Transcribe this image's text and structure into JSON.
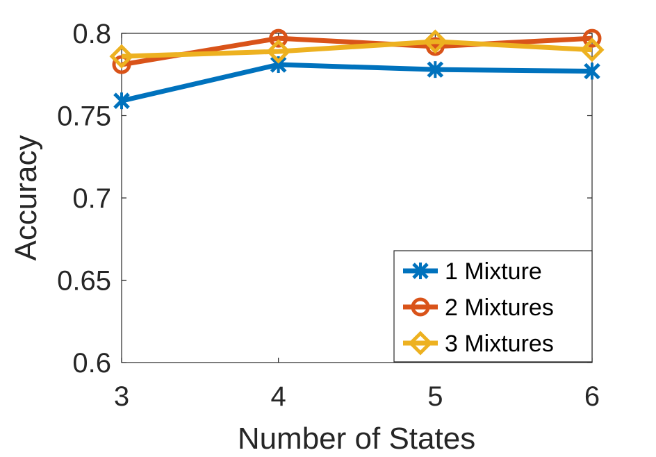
{
  "chart_data": {
    "type": "line",
    "xlabel": "Number of States",
    "ylabel": "Accuracy",
    "x": [
      3,
      4,
      5,
      6
    ],
    "xlim": [
      3,
      6
    ],
    "ylim": [
      0.6,
      0.8
    ],
    "xticks": [
      "3",
      "4",
      "5",
      "6"
    ],
    "yticks": [
      "0.6",
      "0.65",
      "0.7",
      "0.75",
      "0.8"
    ],
    "grid": false,
    "legend_position": "bottom-right",
    "series": [
      {
        "name": "1 Mixture",
        "values": [
          0.759,
          0.781,
          0.778,
          0.777
        ],
        "color": "#0072BD",
        "marker": "x-star"
      },
      {
        "name": "2 Mixtures",
        "values": [
          0.781,
          0.797,
          0.792,
          0.797
        ],
        "color": "#D95319",
        "marker": "circle"
      },
      {
        "name": "3 Mixtures",
        "values": [
          0.786,
          0.789,
          0.795,
          0.79
        ],
        "color": "#EDB120",
        "marker": "diamond"
      }
    ]
  }
}
